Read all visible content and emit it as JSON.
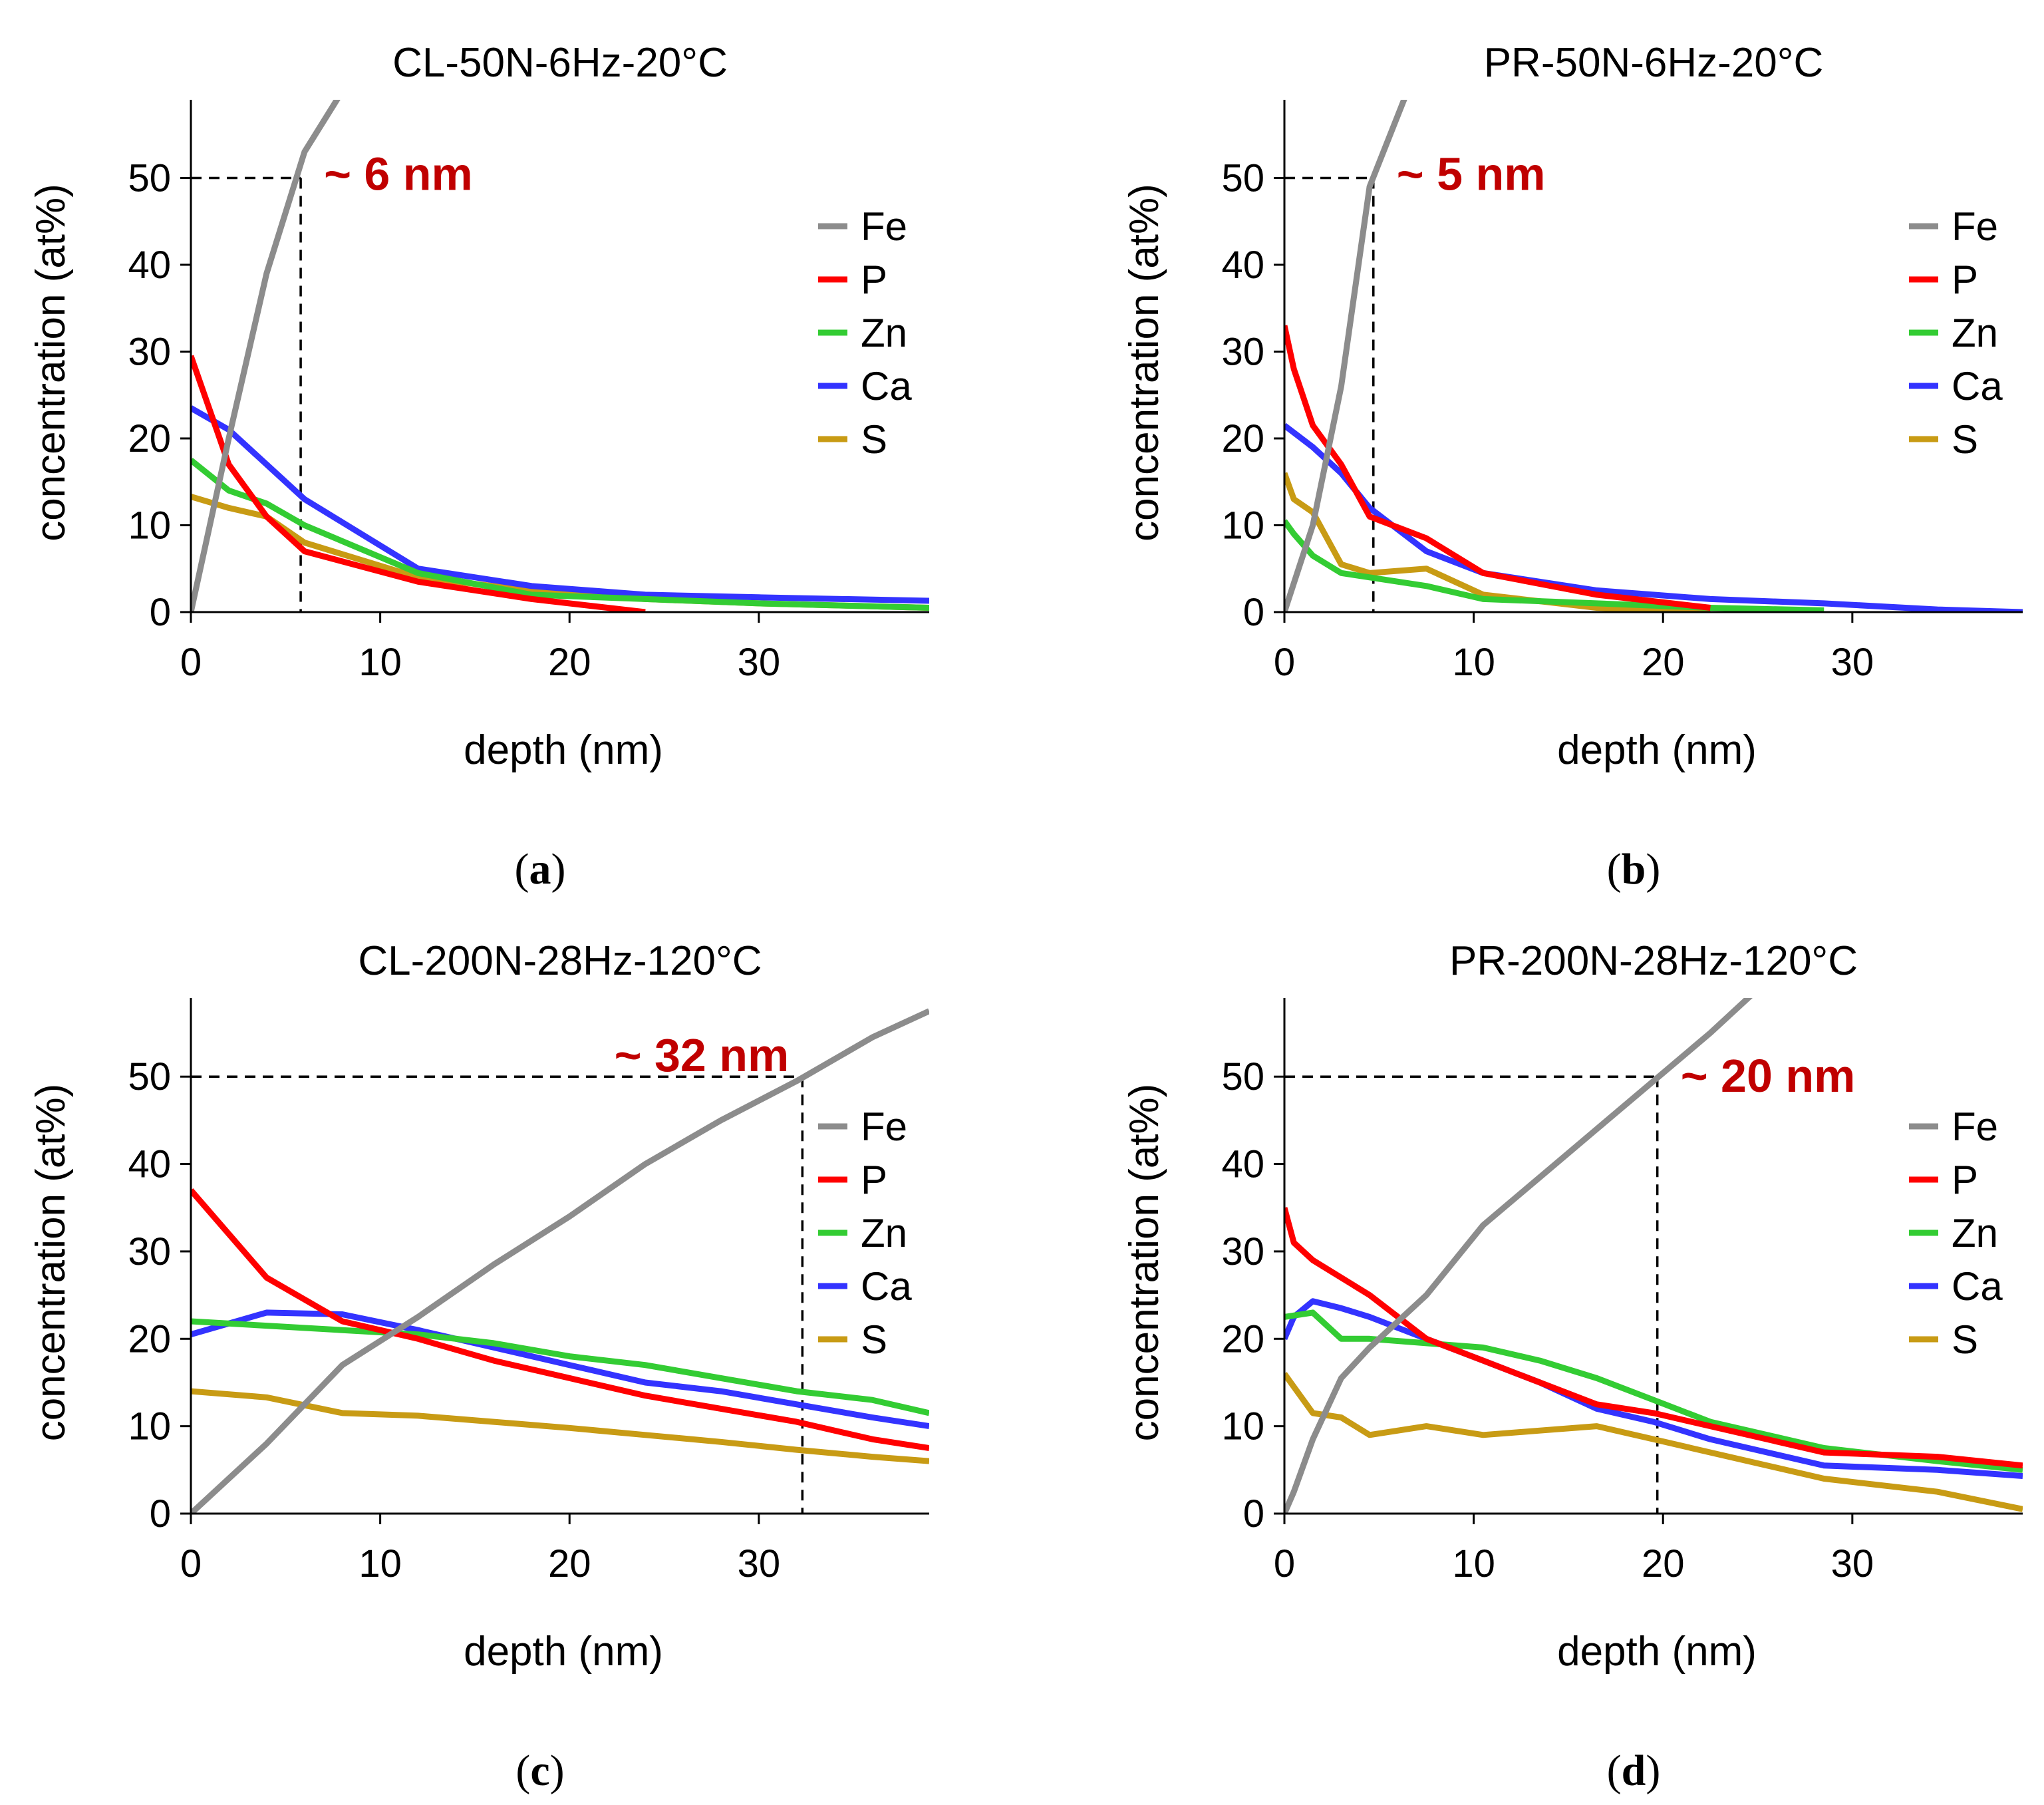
{
  "colors": {
    "Fe": "#8c8c8c",
    "P": "#ff0000",
    "Zn": "#33cc33",
    "Ca": "#3333ff",
    "S": "#c89b14",
    "annotation": "#c00000",
    "axis": "#000000"
  },
  "chart_data": [
    {
      "type": "line",
      "title": "CL-50N-6Hz-20°C",
      "panel_label": "a",
      "xlabel": "depth (nm)",
      "ylabel": "concentration (at%)",
      "xlim": [
        0,
        39
      ],
      "ylim": [
        0,
        59
      ],
      "xticks": [
        0,
        10,
        20,
        30
      ],
      "yticks": [
        0,
        10,
        20,
        30,
        40,
        50
      ],
      "legend": [
        "Fe",
        "P",
        "Zn",
        "Ca",
        "S"
      ],
      "annotation": {
        "text": "~ 6 nm",
        "depth": 5.8,
        "concentration": 50
      },
      "series": [
        {
          "name": "Fe",
          "x": [
            0,
            2,
            4,
            6,
            8
          ],
          "y": [
            0,
            20,
            39,
            53,
            60
          ]
        },
        {
          "name": "P",
          "x": [
            0,
            2,
            4,
            6,
            12,
            18,
            24
          ],
          "y": [
            29.5,
            17,
            11,
            7,
            3.5,
            1.5,
            0
          ]
        },
        {
          "name": "Zn",
          "x": [
            0,
            2,
            4,
            6,
            12,
            18,
            24,
            30,
            39
          ],
          "y": [
            17.5,
            14,
            12.5,
            10,
            4.5,
            2,
            1.5,
            1,
            0.5
          ]
        },
        {
          "name": "Ca",
          "x": [
            0,
            2,
            4,
            6,
            12,
            18,
            24,
            30,
            39
          ],
          "y": [
            23.5,
            21,
            17,
            13,
            5,
            3,
            2,
            1.7,
            1.3
          ]
        },
        {
          "name": "S",
          "x": [
            0,
            2,
            4,
            6,
            12,
            18,
            24,
            30,
            39
          ],
          "y": [
            13.3,
            12,
            11,
            8,
            4,
            2.5,
            1.5,
            1,
            0.5
          ]
        }
      ]
    },
    {
      "type": "line",
      "title": "PR-50N-6Hz-20°C",
      "panel_label": "b",
      "xlabel": "depth (nm)",
      "ylabel": "concentration (at%)",
      "xlim": [
        0,
        39
      ],
      "ylim": [
        0,
        59
      ],
      "xticks": [
        0,
        10,
        20,
        30
      ],
      "yticks": [
        0,
        10,
        20,
        30,
        40,
        50
      ],
      "legend": [
        "Fe",
        "P",
        "Zn",
        "Ca",
        "S"
      ],
      "annotation": {
        "text": "~ 5 nm",
        "depth": 4.7,
        "concentration": 50
      },
      "series": [
        {
          "name": "Fe",
          "x": [
            0,
            1.5,
            3,
            4.5,
            6.5
          ],
          "y": [
            0,
            10,
            26,
            49,
            60
          ]
        },
        {
          "name": "P",
          "x": [
            0,
            0.5,
            1.5,
            3,
            4.5,
            7.5,
            10.5,
            16.5,
            22.5
          ],
          "y": [
            33,
            28,
            21.5,
            17,
            11,
            8.5,
            4.5,
            2,
            0.5
          ]
        },
        {
          "name": "Zn",
          "x": [
            0,
            0.5,
            1.5,
            3,
            4.5,
            7.5,
            10.5,
            16.5,
            22.5,
            28.5
          ],
          "y": [
            10.5,
            9,
            6.5,
            4.5,
            4,
            3,
            1.5,
            1,
            0.5,
            0.2
          ]
        },
        {
          "name": "Ca",
          "x": [
            0,
            1.5,
            3,
            4.5,
            7.5,
            10.5,
            16.5,
            22.5,
            28.5,
            34.5,
            39
          ],
          "y": [
            21.5,
            19,
            16,
            12,
            7,
            4.5,
            2.5,
            1.5,
            1,
            0.3,
            0
          ]
        },
        {
          "name": "S",
          "x": [
            0,
            0.5,
            1.5,
            3,
            4.5,
            7.5,
            10.5,
            16.5,
            22.5
          ],
          "y": [
            16,
            13,
            11.5,
            5.5,
            4.5,
            5,
            2,
            0.5,
            0
          ]
        }
      ]
    },
    {
      "type": "line",
      "title": "CL-200N-28Hz-120°C",
      "panel_label": "c",
      "xlabel": "depth (nm)",
      "ylabel": "concentration (at%)",
      "xlim": [
        0,
        39
      ],
      "ylim": [
        0,
        59
      ],
      "xticks": [
        0,
        10,
        20,
        30
      ],
      "yticks": [
        0,
        10,
        20,
        30,
        40,
        50
      ],
      "legend": [
        "Fe",
        "P",
        "Zn",
        "Ca",
        "S"
      ],
      "annotation": {
        "text": "~ 32 nm",
        "depth": 32.3,
        "concentration": 50
      },
      "series": [
        {
          "name": "Fe",
          "x": [
            0,
            4,
            8,
            12,
            16,
            20,
            24,
            28,
            32,
            36,
            39
          ],
          "y": [
            0,
            8,
            17,
            22.5,
            28.5,
            34,
            40,
            45,
            49.5,
            54.5,
            57.5
          ]
        },
        {
          "name": "P",
          "x": [
            0,
            4,
            8,
            12,
            16,
            20,
            24,
            28,
            32,
            36,
            39
          ],
          "y": [
            37,
            27,
            22,
            20,
            17.5,
            15.5,
            13.5,
            12,
            10.5,
            8.5,
            7.5
          ]
        },
        {
          "name": "Zn",
          "x": [
            0,
            4,
            8,
            12,
            16,
            20,
            24,
            28,
            32,
            36,
            39
          ],
          "y": [
            22,
            21.5,
            21,
            20.5,
            19.5,
            18,
            17,
            15.5,
            14,
            13,
            11.5
          ]
        },
        {
          "name": "Ca",
          "x": [
            0,
            4,
            8,
            12,
            16,
            20,
            24,
            28,
            32,
            36,
            39
          ],
          "y": [
            20.5,
            23,
            22.8,
            21,
            19,
            17,
            15,
            14,
            12.5,
            11,
            10
          ]
        },
        {
          "name": "S",
          "x": [
            0,
            4,
            8,
            12,
            16,
            20,
            24,
            28,
            32,
            36,
            39
          ],
          "y": [
            14,
            13.3,
            11.5,
            11.2,
            10.5,
            9.8,
            9,
            8.2,
            7.3,
            6.5,
            6
          ]
        }
      ]
    },
    {
      "type": "line",
      "title": "PR-200N-28Hz-120°C",
      "panel_label": "d",
      "xlabel": "depth (nm)",
      "ylabel": "concentration (at%)",
      "xlim": [
        0,
        39
      ],
      "ylim": [
        0,
        59
      ],
      "xticks": [
        0,
        10,
        20,
        30
      ],
      "yticks": [
        0,
        10,
        20,
        30,
        40,
        50
      ],
      "legend": [
        "Fe",
        "P",
        "Zn",
        "Ca",
        "S"
      ],
      "annotation": {
        "text": "~ 20 nm",
        "depth": 19.7,
        "concentration": 50
      },
      "series": [
        {
          "name": "Fe",
          "x": [
            0,
            0.5,
            1.5,
            3,
            4.5,
            7.5,
            10.5,
            13.5,
            16.5,
            19.5,
            22.5,
            25
          ],
          "y": [
            0,
            2.5,
            8.5,
            15.5,
            19,
            25,
            33,
            38.5,
            44,
            49.5,
            55,
            60
          ]
        },
        {
          "name": "P",
          "x": [
            0,
            0.5,
            1.5,
            3,
            4.5,
            7.5,
            10.5,
            13.5,
            16.5,
            19.5,
            22.5,
            28.5,
            34.5,
            39
          ],
          "y": [
            35,
            31,
            29,
            27,
            25,
            20,
            17.5,
            15,
            12.5,
            11.5,
            10,
            7,
            6.5,
            5.5
          ]
        },
        {
          "name": "Zn",
          "x": [
            0,
            1.5,
            3,
            4.5,
            7.5,
            10.5,
            13.5,
            16.5,
            19.5,
            22.5,
            28.5,
            34.5,
            39
          ],
          "y": [
            22.5,
            23,
            20,
            20,
            19.5,
            19,
            17.5,
            15.5,
            13,
            10.5,
            7.5,
            6,
            5
          ]
        },
        {
          "name": "Ca",
          "x": [
            0,
            0.5,
            1.5,
            3,
            4.5,
            7.5,
            10.5,
            13.5,
            16.5,
            19.5,
            22.5,
            28.5,
            34.5,
            39
          ],
          "y": [
            20,
            22.5,
            24.3,
            23.5,
            22.5,
            20,
            17.5,
            15,
            12,
            10.5,
            8.5,
            5.5,
            5,
            4.3
          ]
        },
        {
          "name": "S",
          "x": [
            0,
            0.5,
            1.5,
            3,
            4.5,
            7.5,
            10.5,
            13.5,
            16.5,
            19.5,
            22.5,
            28.5,
            34.5,
            39
          ],
          "y": [
            16,
            14.5,
            11.5,
            11,
            9,
            10,
            9,
            9.5,
            10,
            8.5,
            7,
            4,
            2.5,
            0.5
          ]
        }
      ]
    }
  ]
}
